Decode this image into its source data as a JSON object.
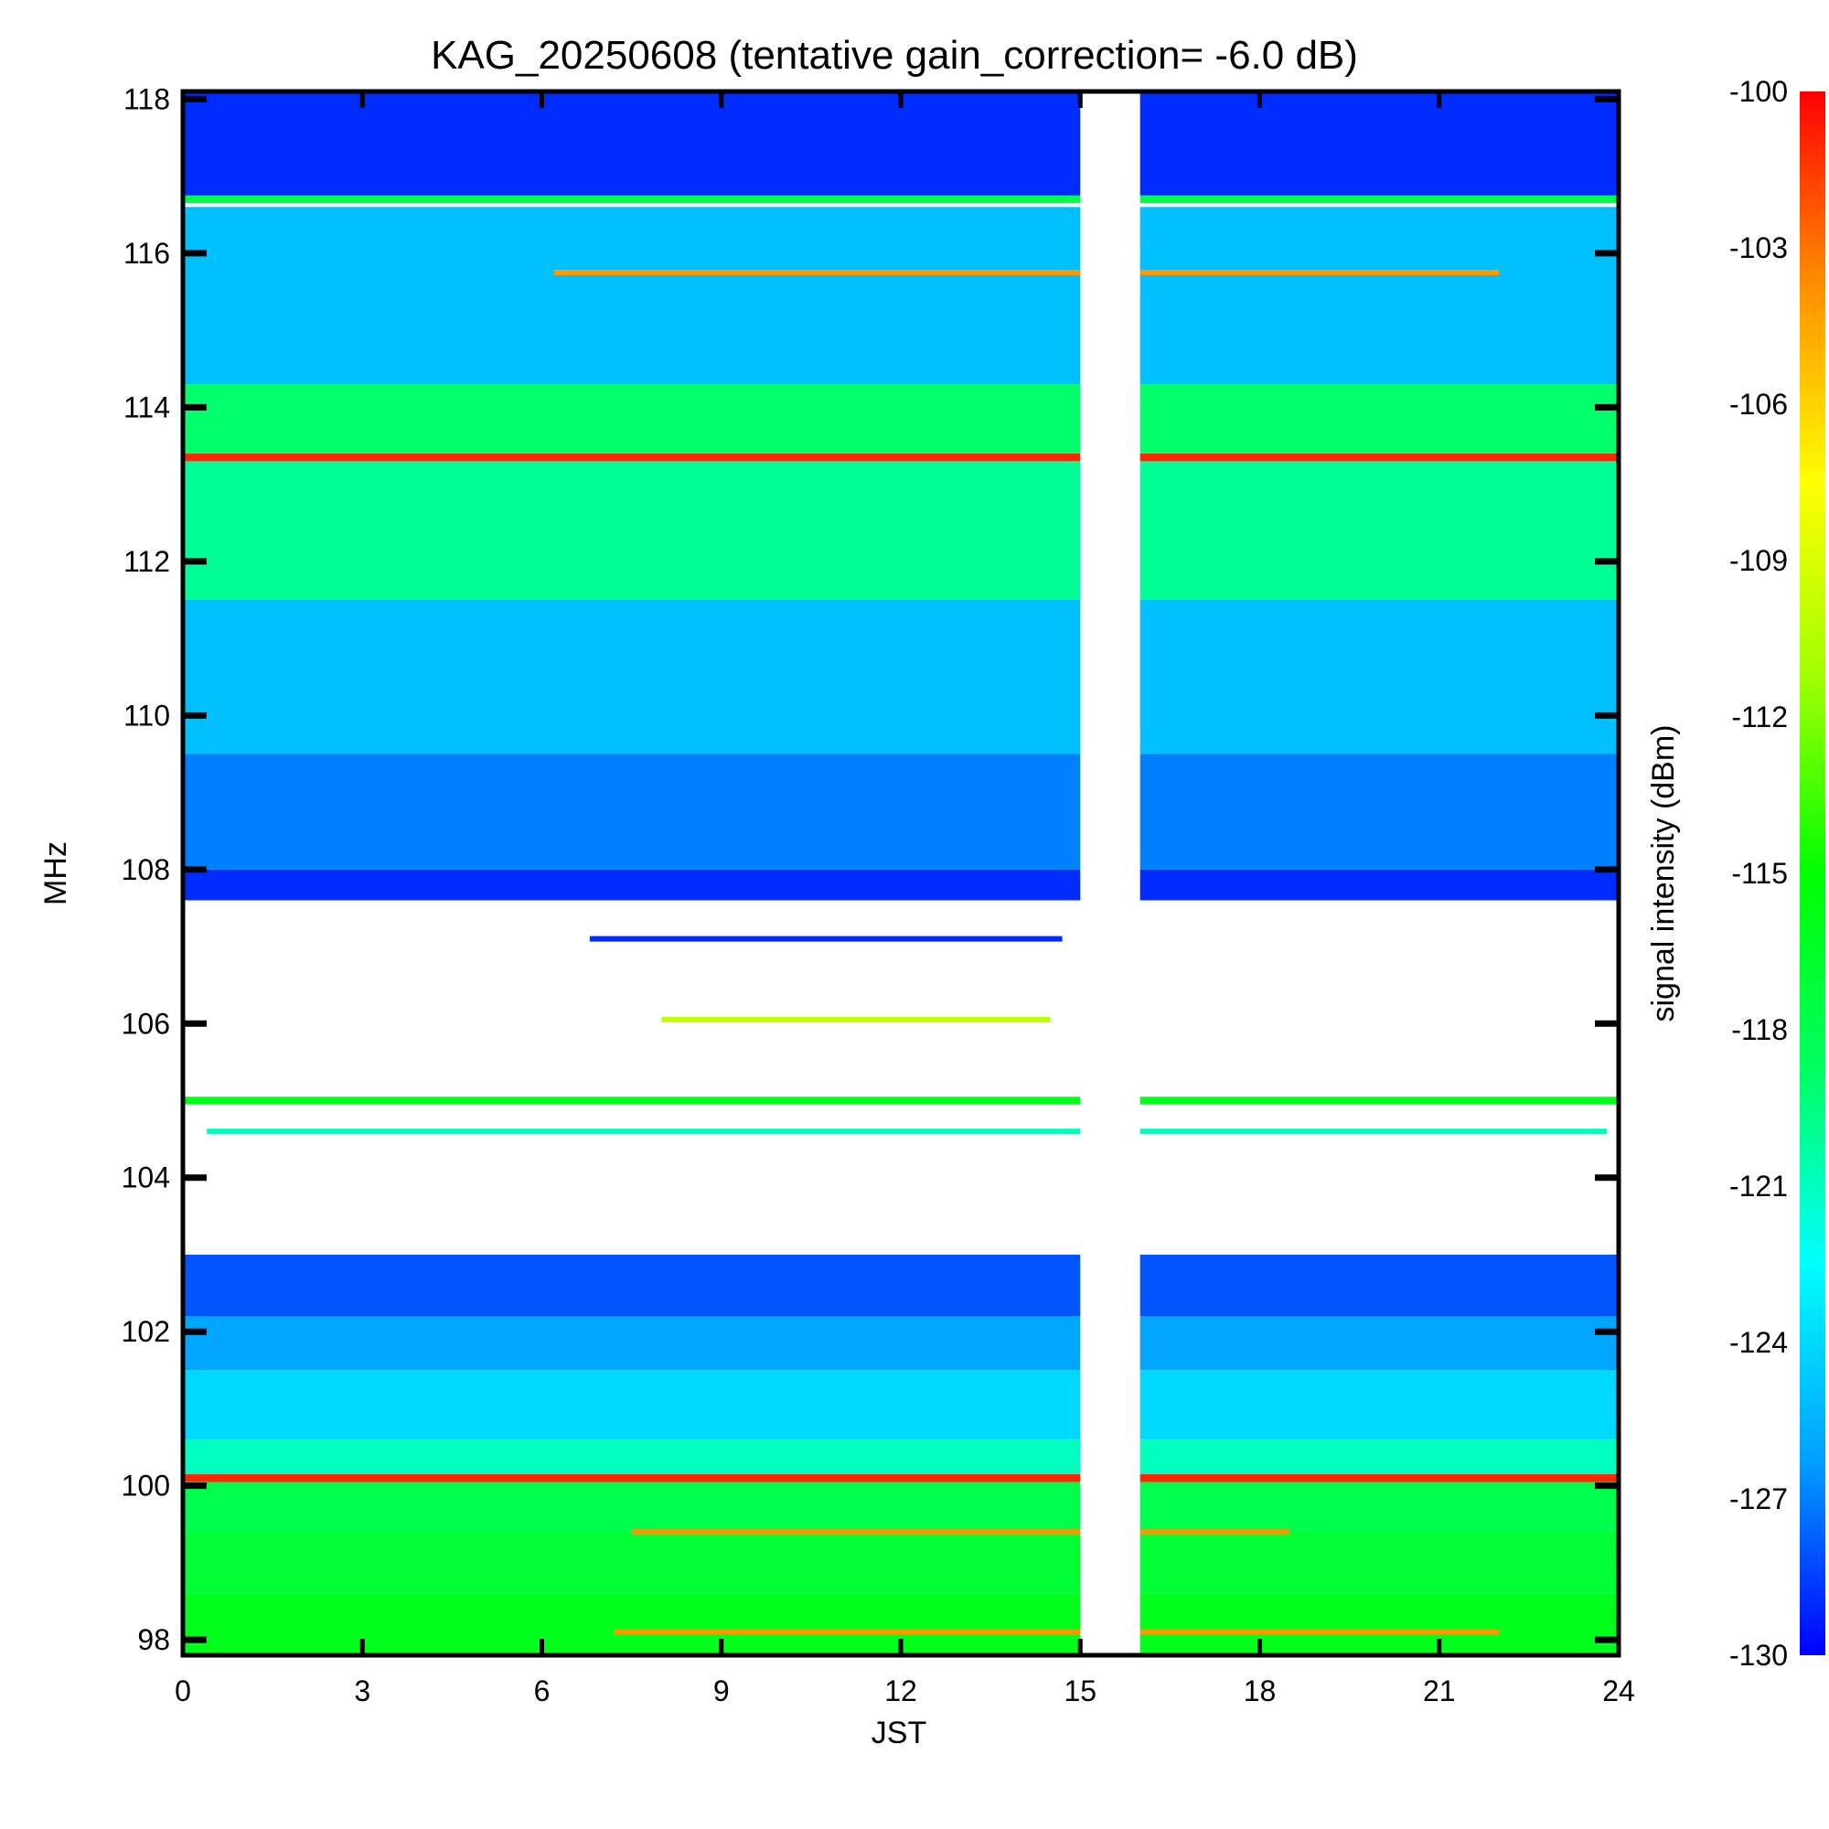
{
  "chart_data": {
    "type": "heatmap",
    "title": "KAG_20250608 (tentative gain_correction= -6.0 dB)",
    "xlabel": "JST",
    "ylabel": "MHz",
    "colorbar_label": "signal intensity (dBm)",
    "xlim": [
      0,
      24
    ],
    "ylim": [
      97.8,
      118.1
    ],
    "x_ticks": [
      0,
      3,
      6,
      9,
      12,
      15,
      18,
      21,
      24
    ],
    "y_ticks": [
      98,
      100,
      102,
      104,
      106,
      108,
      110,
      112,
      114,
      116,
      118
    ],
    "colorbar_range": [
      -130,
      -100
    ],
    "colorbar_ticks": [
      -100,
      -103,
      -106,
      -109,
      -112,
      -115,
      -118,
      -121,
      -124,
      -127,
      -130
    ],
    "colormap": [
      "#0000ff",
      "#00a0ff",
      "#00ffff",
      "#00ff60",
      "#00ff00",
      "#a0ff00",
      "#ffff00",
      "#ff9000",
      "#ff0000"
    ],
    "no_data_intervals": [
      [
        15.0,
        16.0
      ]
    ],
    "frequency_bands": [
      {
        "freq_min": 97.8,
        "freq_max": 98.6,
        "intensity_dBm": -116
      },
      {
        "freq_min": 98.6,
        "freq_max": 99.4,
        "intensity_dBm": -117
      },
      {
        "freq_min": 99.4,
        "freq_max": 100.05,
        "intensity_dBm": -118
      },
      {
        "freq_min": 100.05,
        "freq_max": 100.15,
        "intensity_dBm": -101
      },
      {
        "freq_min": 100.15,
        "freq_max": 100.6,
        "intensity_dBm": -121
      },
      {
        "freq_min": 100.6,
        "freq_max": 101.5,
        "intensity_dBm": -124
      },
      {
        "freq_min": 101.5,
        "freq_max": 102.2,
        "intensity_dBm": -126
      },
      {
        "freq_min": 102.2,
        "freq_max": 103.0,
        "intensity_dBm": -128
      },
      {
        "freq_min": 104.95,
        "freq_max": 105.05,
        "intensity_dBm": -116
      },
      {
        "freq_min": 107.6,
        "freq_max": 108.0,
        "intensity_dBm": -129
      },
      {
        "freq_min": 108.0,
        "freq_max": 109.5,
        "intensity_dBm": -127
      },
      {
        "freq_min": 109.5,
        "freq_max": 111.5,
        "intensity_dBm": -125
      },
      {
        "freq_min": 111.5,
        "freq_max": 113.3,
        "intensity_dBm": -120
      },
      {
        "freq_min": 113.3,
        "freq_max": 113.4,
        "intensity_dBm": -101
      },
      {
        "freq_min": 113.4,
        "freq_max": 114.3,
        "intensity_dBm": -119
      },
      {
        "freq_min": 114.3,
        "freq_max": 116.6,
        "intensity_dBm": -125
      },
      {
        "freq_min": 116.65,
        "freq_max": 116.75,
        "intensity_dBm": -118
      },
      {
        "freq_min": 116.75,
        "freq_max": 118.1,
        "intensity_dBm": -129
      }
    ],
    "transient_signals": [
      {
        "freq": 115.75,
        "time_start": 6.2,
        "time_end": 22.0,
        "intensity_dBm": -104
      },
      {
        "freq": 107.1,
        "time_start": 6.8,
        "time_end": 14.7,
        "intensity_dBm": -129
      },
      {
        "freq": 106.05,
        "time_start": 8.0,
        "time_end": 14.5,
        "intensity_dBm": -110
      },
      {
        "freq": 104.6,
        "time_start": 0.4,
        "time_end": 23.8,
        "intensity_dBm": -121
      },
      {
        "freq": 99.4,
        "time_start": 7.5,
        "time_end": 18.5,
        "intensity_dBm": -104
      },
      {
        "freq": 98.1,
        "time_start": 7.2,
        "time_end": 22.0,
        "intensity_dBm": -104
      }
    ]
  }
}
